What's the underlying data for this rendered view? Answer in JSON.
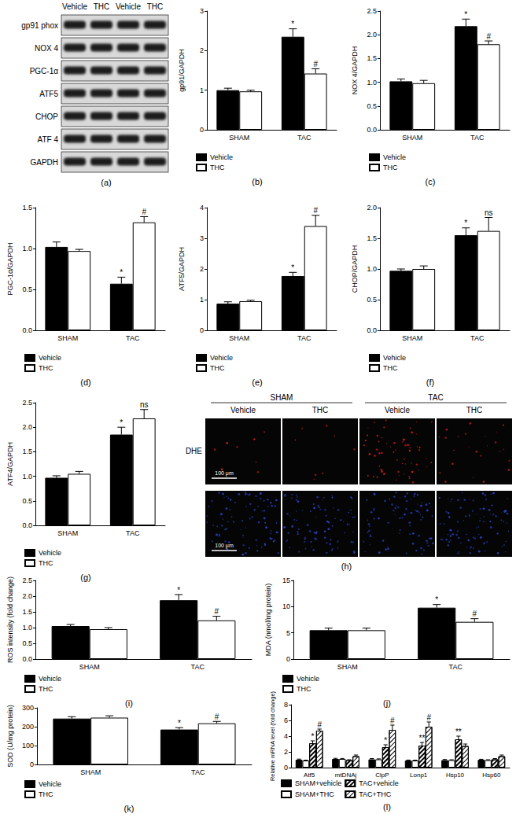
{
  "blot": {
    "panel": "(a)",
    "lanes": [
      "Vehicle",
      "THC",
      "Vehicle",
      "THC"
    ],
    "rows": [
      "gp91 phox",
      "NOX 4",
      "PGC-1α",
      "ATF5",
      "CHOP",
      "ATF 4",
      "GAPDH"
    ]
  },
  "dhe": {
    "panel": "(h)",
    "groups": [
      "SHAM",
      "TAC"
    ],
    "lanes": [
      "Vehicle",
      "THC",
      "Vehicle",
      "THC"
    ],
    "row_label": "DHE",
    "scale_bar": "100 μm"
  },
  "chart_data": [
    {
      "type": "bar",
      "panel": "(b)",
      "ylabel": "gp91/GAPDH",
      "categories": [
        "SHAM",
        "TAC"
      ],
      "ylim": [
        0,
        3
      ],
      "yticks": [
        0,
        1,
        2,
        3
      ],
      "grid": false,
      "legend": "bottom",
      "series": [
        {
          "name": "Vehicle",
          "color": "#000000",
          "values": [
            1.0,
            2.35
          ],
          "errors": [
            0.05,
            0.2
          ],
          "annotations": [
            null,
            "*"
          ]
        },
        {
          "name": "THC",
          "color": "#ffffff",
          "values": [
            0.97,
            1.42
          ],
          "errors": [
            0.03,
            0.12
          ],
          "annotations": [
            null,
            "#"
          ]
        }
      ]
    },
    {
      "type": "bar",
      "panel": "(c)",
      "ylabel": "NOX 4/GAPDH",
      "categories": [
        "SHAM",
        "TAC"
      ],
      "ylim": [
        0,
        2.5
      ],
      "yticks": [
        {
          "value": 0,
          "label": "0.0"
        },
        0.5,
        {
          "value": 1,
          "label": "1.0"
        },
        1.5,
        {
          "value": 2,
          "label": "2.0"
        },
        2.5
      ],
      "grid": false,
      "legend": "bottom",
      "series": [
        {
          "name": "Vehicle",
          "color": "#000000",
          "values": [
            1.02,
            2.18
          ],
          "errors": [
            0.05,
            0.15
          ],
          "annotations": [
            null,
            "*"
          ]
        },
        {
          "name": "THC",
          "color": "#ffffff",
          "values": [
            0.98,
            1.8
          ],
          "errors": [
            0.06,
            0.07
          ],
          "annotations": [
            null,
            "#"
          ]
        }
      ]
    },
    {
      "type": "bar",
      "panel": "(d)",
      "ylabel": "PGC-1α/GAPDH",
      "categories": [
        "SHAM",
        "TAC"
      ],
      "ylim": [
        0,
        1.5
      ],
      "yticks": [
        {
          "value": 0,
          "label": "0.0"
        },
        0.5,
        {
          "value": 1,
          "label": "1.0"
        },
        1.5
      ],
      "grid": false,
      "legend": "bottom",
      "series": [
        {
          "name": "Vehicle",
          "color": "#000000",
          "values": [
            1.02,
            0.57
          ],
          "errors": [
            0.06,
            0.08
          ],
          "annotations": [
            null,
            "*"
          ]
        },
        {
          "name": "THC",
          "color": "#ffffff",
          "values": [
            0.97,
            1.32
          ],
          "errors": [
            0.02,
            0.07
          ],
          "annotations": [
            null,
            "#"
          ]
        }
      ]
    },
    {
      "type": "bar",
      "panel": "(e)",
      "ylabel": "ATF5/GAPDH",
      "categories": [
        "SHAM",
        "TAC"
      ],
      "ylim": [
        0,
        4
      ],
      "yticks": [
        0,
        1,
        2,
        3,
        4
      ],
      "grid": false,
      "legend": "bottom",
      "series": [
        {
          "name": "Vehicle",
          "color": "#000000",
          "values": [
            0.87,
            1.77
          ],
          "errors": [
            0.06,
            0.12
          ],
          "annotations": [
            null,
            "*"
          ]
        },
        {
          "name": "THC",
          "color": "#ffffff",
          "values": [
            0.95,
            3.4
          ],
          "errors": [
            0.03,
            0.35
          ],
          "annotations": [
            null,
            "#"
          ]
        }
      ]
    },
    {
      "type": "bar",
      "panel": "(f)",
      "ylabel": "CHOP/GAPDH",
      "categories": [
        "SHAM",
        "TAC"
      ],
      "ylim": [
        0,
        2
      ],
      "yticks": [
        {
          "value": 0,
          "label": "0.0"
        },
        0.5,
        {
          "value": 1,
          "label": "1.0"
        },
        1.5,
        {
          "value": 2,
          "label": "2.0"
        }
      ],
      "grid": false,
      "legend": "bottom",
      "series": [
        {
          "name": "Vehicle",
          "color": "#000000",
          "values": [
            0.97,
            1.55
          ],
          "errors": [
            0.03,
            0.12
          ],
          "annotations": [
            null,
            "*"
          ]
        },
        {
          "name": "THC",
          "color": "#ffffff",
          "values": [
            1.0,
            1.62
          ],
          "errors": [
            0.05,
            0.22
          ],
          "annotations": [
            null,
            "ns"
          ]
        }
      ]
    },
    {
      "type": "bar",
      "panel": "(g)",
      "ylabel": "ATF4/GAPDH",
      "categories": [
        "SHAM",
        "TAC"
      ],
      "ylim": [
        0,
        2.5
      ],
      "yticks": [
        {
          "value": 0,
          "label": "0.0"
        },
        0.5,
        {
          "value": 1,
          "label": "1.0"
        },
        1.5,
        {
          "value": 2,
          "label": "2.0"
        },
        2.5
      ],
      "grid": false,
      "legend": "bottom",
      "series": [
        {
          "name": "Vehicle",
          "color": "#000000",
          "values": [
            0.97,
            1.85
          ],
          "errors": [
            0.04,
            0.15
          ],
          "annotations": [
            null,
            "*"
          ]
        },
        {
          "name": "THC",
          "color": "#ffffff",
          "values": [
            1.05,
            2.18
          ],
          "errors": [
            0.05,
            0.18
          ],
          "annotations": [
            null,
            "ns"
          ]
        }
      ]
    },
    {
      "type": "bar",
      "panel": "(i)",
      "ylabel": "ROS intensity (fold change)",
      "categories": [
        "SHAM",
        "TAC"
      ],
      "ylim": [
        0,
        2.5
      ],
      "yticks": [
        {
          "value": 0,
          "label": "0.0"
        },
        0.5,
        {
          "value": 1,
          "label": "1.0"
        },
        1.5,
        {
          "value": 2,
          "label": "2.0"
        },
        2.5
      ],
      "grid": false,
      "legend": "bottom",
      "series": [
        {
          "name": "Vehicle",
          "color": "#000000",
          "values": [
            1.05,
            1.87
          ],
          "errors": [
            0.05,
            0.18
          ],
          "annotations": [
            null,
            "*"
          ]
        },
        {
          "name": "THC",
          "color": "#ffffff",
          "values": [
            0.95,
            1.23
          ],
          "errors": [
            0.05,
            0.13
          ],
          "annotations": [
            null,
            "#"
          ]
        }
      ]
    },
    {
      "type": "bar",
      "panel": "(j)",
      "ylabel": "MDA (nmol/mg protein)",
      "categories": [
        "SHAM",
        "TAC"
      ],
      "ylim": [
        0,
        15
      ],
      "yticks": [
        0,
        5,
        10,
        15
      ],
      "grid": false,
      "legend": "bottom",
      "series": [
        {
          "name": "Vehicle",
          "color": "#000000",
          "values": [
            5.5,
            9.8
          ],
          "errors": [
            0.4,
            0.6
          ],
          "annotations": [
            null,
            "*"
          ]
        },
        {
          "name": "THC",
          "color": "#ffffff",
          "values": [
            5.5,
            7.1
          ],
          "errors": [
            0.4,
            0.6
          ],
          "annotations": [
            null,
            "#"
          ]
        }
      ]
    },
    {
      "type": "bar",
      "panel": "(k)",
      "ylabel": "SOD (U/mg protein)",
      "categories": [
        "SHAM",
        "TAC"
      ],
      "ylim": [
        0,
        300
      ],
      "yticks": [
        0,
        100,
        200,
        300
      ],
      "grid": false,
      "legend": "bottom",
      "series": [
        {
          "name": "Vehicle",
          "color": "#000000",
          "values": [
            243,
            185
          ],
          "errors": [
            10,
            10
          ],
          "annotations": [
            null,
            "*"
          ]
        },
        {
          "name": "THC",
          "color": "#ffffff",
          "values": [
            248,
            218
          ],
          "errors": [
            10,
            10
          ],
          "annotations": [
            null,
            "#"
          ]
        }
      ]
    },
    {
      "type": "bar",
      "panel": "(l)",
      "ylabel": "Relative mRNA level (fold change)",
      "categories": [
        "Atf5",
        "mtDNAj",
        "ClpP",
        "Lonp1",
        "Hsp10",
        "Hsp60"
      ],
      "ylim": [
        0,
        8
      ],
      "yticks": [
        0,
        2,
        4,
        6,
        8
      ],
      "grid": false,
      "legend": "bottom",
      "series": [
        {
          "name": "SHAM+vehicle",
          "color": "#000000",
          "values": [
            1.0,
            1.1,
            1.05,
            0.9,
            0.95,
            1.0
          ],
          "errors": [
            0.08,
            0.08,
            0.1,
            0.06,
            0.08,
            0.06
          ],
          "annotations": [
            null,
            null,
            null,
            null,
            null,
            null
          ]
        },
        {
          "name": "SHAM+THC",
          "color": "#ffffff",
          "values": [
            0.9,
            1.1,
            1.05,
            0.9,
            0.95,
            0.95
          ],
          "errors": [
            0.05,
            0.06,
            0.06,
            0.05,
            0.05,
            0.05
          ],
          "annotations": [
            null,
            null,
            null,
            null,
            null,
            null
          ]
        },
        {
          "name": "TAC+vehicle",
          "color": "#ffffff",
          "values": [
            3.1,
            0.95,
            2.6,
            2.8,
            3.6,
            1.05
          ],
          "errors": [
            0.3,
            0.05,
            0.3,
            0.4,
            0.4,
            0.1
          ],
          "annotations": [
            "*",
            null,
            "*",
            "**",
            "**",
            null
          ]
        },
        {
          "name": "TAC+THC",
          "color": "#ffffff",
          "values": [
            4.7,
            1.45,
            4.8,
            5.2,
            2.75,
            1.45
          ],
          "errors": [
            0.2,
            0.15,
            0.6,
            0.6,
            0.25,
            0.15
          ],
          "annotations": [
            "#",
            null,
            "#",
            "#",
            null,
            null
          ]
        }
      ]
    }
  ]
}
